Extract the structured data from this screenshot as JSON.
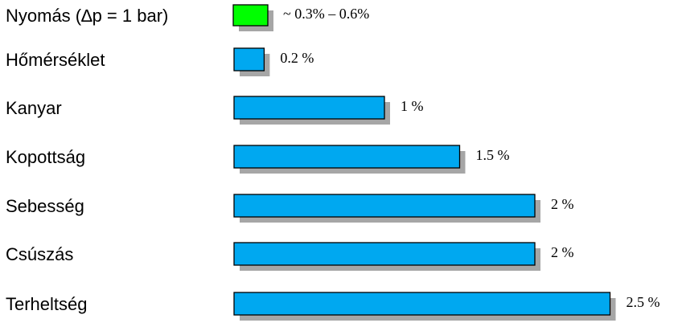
{
  "chart_data": {
    "type": "bar",
    "orientation": "horizontal",
    "title": "",
    "xlabel": "",
    "ylabel": "",
    "categories": [
      "Nyomás (∆p = 1 bar)",
      "Hőmérséklet",
      "Kanyar",
      "Kopottság",
      "Sebesség",
      "Csúszás",
      "Terheltség"
    ],
    "values": [
      0.45,
      0.2,
      1.0,
      1.5,
      2.0,
      2.0,
      2.5
    ],
    "value_labels": [
      "~ 0.3% – 0.6%",
      "0.2 %",
      "1 %",
      "1.5 %",
      "2 %",
      "2 %",
      "2.5 %"
    ],
    "xlim": [
      0,
      2.5
    ],
    "grid": false,
    "colors": {
      "highlight": "#00ff00",
      "default": "#00a8f0",
      "shadow": "#a6a6a6",
      "outline": "#000000"
    },
    "highlight_index": 0
  }
}
